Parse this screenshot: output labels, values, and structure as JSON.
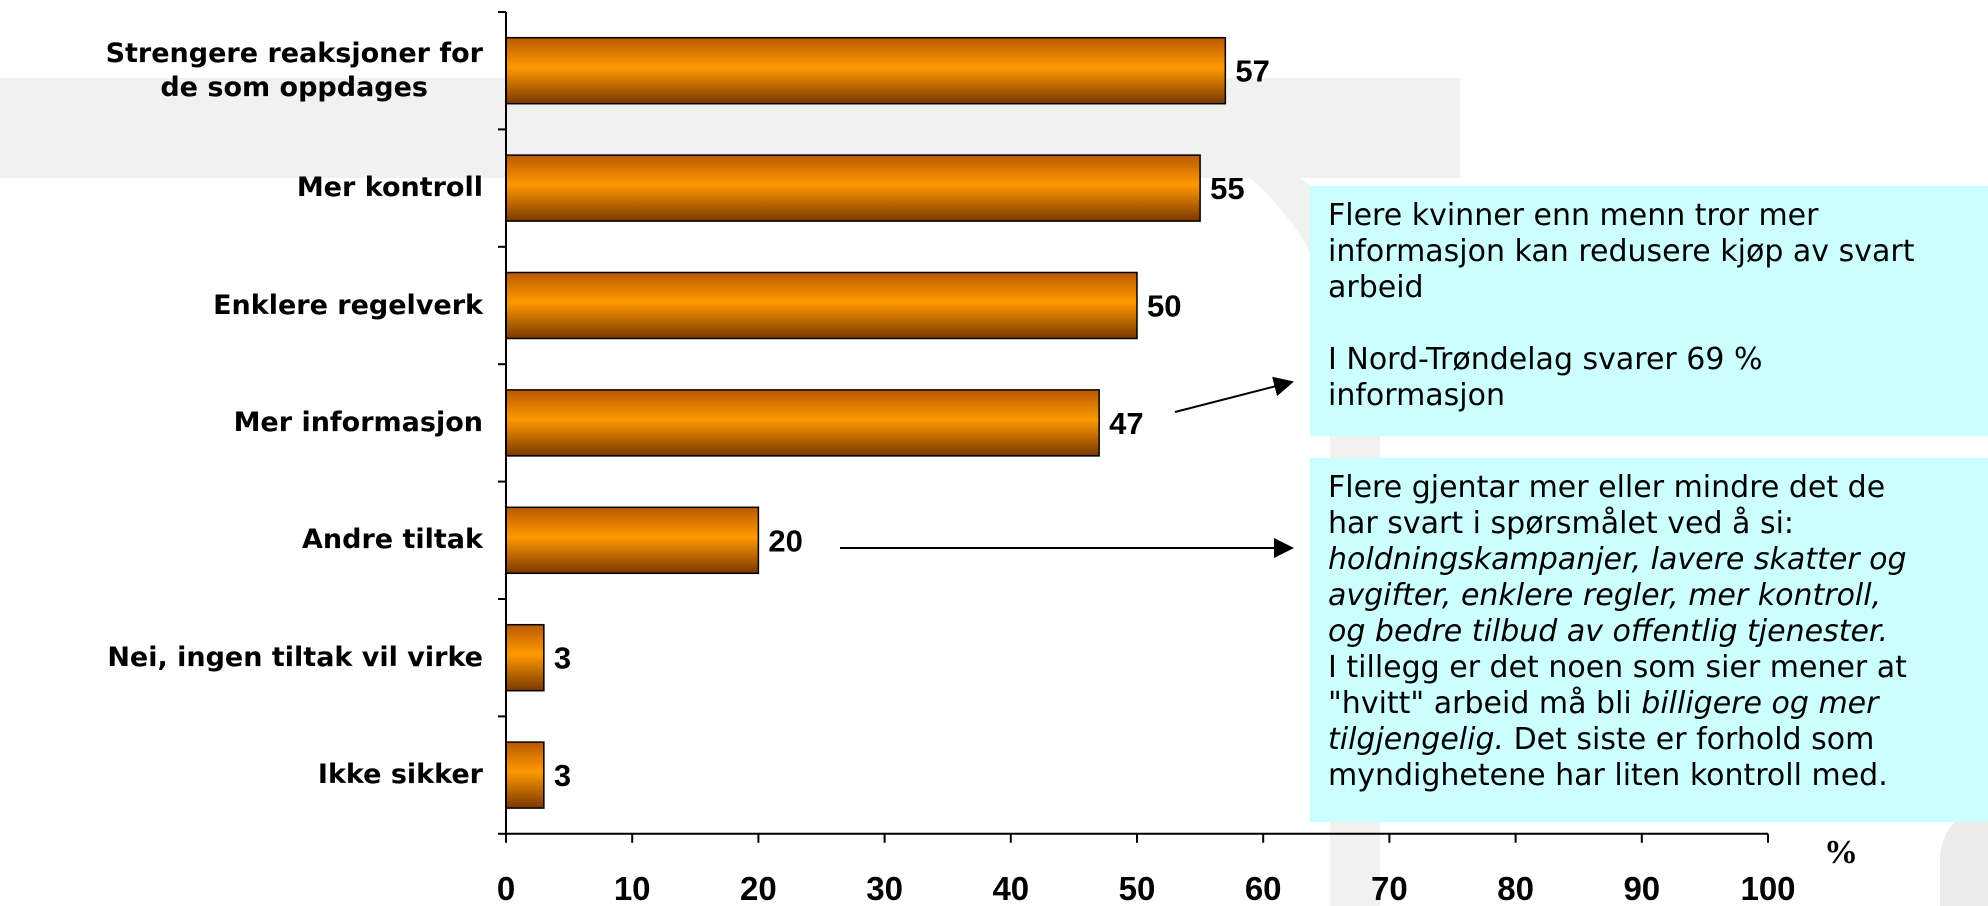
{
  "chart_data": {
    "type": "bar",
    "orientation": "horizontal",
    "categories": [
      [
        "Strengere reaksjoner for",
        "de som oppdages"
      ],
      [
        "Mer kontroll"
      ],
      [
        "Enklere regelverk"
      ],
      [
        "Mer informasjon"
      ],
      [
        "Andre tiltak"
      ],
      [
        "Nei, ingen tiltak vil virke"
      ],
      [
        "Ikke sikker"
      ]
    ],
    "values": [
      57,
      55,
      50,
      47,
      20,
      3,
      3
    ],
    "value_labels": [
      "57",
      "55",
      "50",
      "47",
      "20",
      "3",
      "3"
    ],
    "x_ticks": [
      "0",
      "10",
      "20",
      "30",
      "40",
      "50",
      "60",
      "70",
      "80",
      "90",
      "100"
    ],
    "xlim": [
      0,
      100
    ],
    "x_unit": "%",
    "bar_color": "#ff9900",
    "grid": false
  },
  "notes": {
    "box1_line1": "Flere kvinner enn menn tror mer",
    "box1_line2": "informasjon kan redusere kjøp av svart",
    "box1_line3": "arbeid",
    "box1_line4": "I Nord-Trøndelag svarer 69 %",
    "box1_line5": "informasjon",
    "box2_line1": "Flere gjentar mer eller mindre det de",
    "box2_line2": "har svart i spørsmålet ved å si:",
    "box2_line3": "holdningskampanjer, lavere skatter og",
    "box2_line4": "avgifter, enklere regler, mer kontroll,",
    "box2_line5": "og bedre tilbud av offentlig tjenester.",
    "box2_line6": "I tillegg er det noen som sier mener at",
    "box2_line7a": "\"hvitt\" arbeid må bli ",
    "box2_line7b": "billigere og mer",
    "box2_line8a": "tilgjengelig.",
    "box2_line8b": " Det siste er forhold som",
    "box2_line9": "myndighetene har liten kontroll med."
  }
}
